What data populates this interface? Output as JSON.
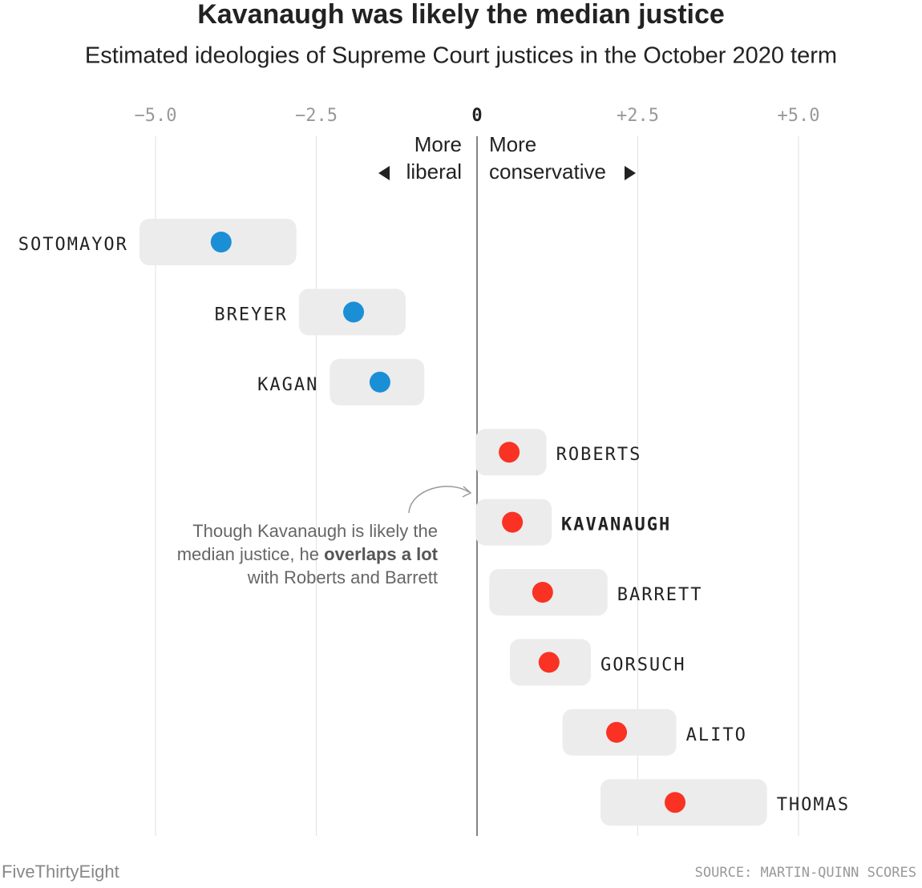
{
  "chart_data": {
    "type": "dot_range",
    "title": "Kavanaugh was likely the median justice",
    "subtitle": "Estimated ideologies of Supreme Court justices in the October 2020 term",
    "categories": [
      "SOTOMAYOR",
      "BREYER",
      "KAGAN",
      "ROBERTS",
      "KAVANAUGH",
      "BARRETT",
      "GORSUCH",
      "ALITO",
      "THOMAS"
    ],
    "values": [
      -3.98,
      -1.92,
      -1.51,
      0.5,
      0.55,
      1.02,
      1.12,
      2.17,
      3.08
    ],
    "low": [
      -5.25,
      -2.77,
      -2.29,
      -0.02,
      -0.02,
      0.19,
      0.51,
      1.33,
      1.92
    ],
    "high": [
      -2.81,
      -1.11,
      -0.82,
      1.08,
      1.16,
      2.03,
      1.77,
      3.1,
      4.51
    ],
    "colors": [
      "#1a8fd6",
      "#1a8fd6",
      "#1a8fd6",
      "#f93224",
      "#f93224",
      "#f93224",
      "#f93224",
      "#f93224",
      "#f93224"
    ],
    "xlim": [
      -5,
      5
    ],
    "xticks": [
      {
        "value": -5,
        "label": "−5.0"
      },
      {
        "value": -2.5,
        "label": "−2.5"
      },
      0,
      {
        "value": 2.5,
        "label": "+2.5"
      },
      {
        "value": 5,
        "label": "+5.0"
      }
    ],
    "grid": true,
    "left_label": [
      "More",
      "liberal"
    ],
    "right_label": [
      "More",
      "conservative"
    ],
    "annotation": [
      "Though Kavanaugh is likely the",
      "median justice, he",
      "overlaps a lot",
      "with Roberts and Barrett"
    ],
    "credit": "FiveThirtyEight",
    "source": "SOURCE: MARTIN-QUINN SCORES"
  }
}
